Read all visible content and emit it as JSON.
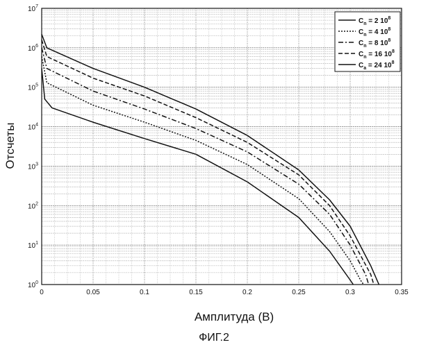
{
  "figure_caption": "ФИГ.2",
  "chart_data": {
    "type": "line",
    "xlabel": "Амплитуда (В)",
    "ylabel": "Отсчеты",
    "xlim": [
      0,
      0.35
    ],
    "ylim": [
      1,
      10000000
    ],
    "y_scale": "log",
    "grid": true,
    "legend_position": "top-right",
    "x_ticks": [
      "0",
      "0.05",
      "0.1",
      "0.15",
      "0.2",
      "0.25",
      "0.3",
      "0.35"
    ],
    "y_ticks": [
      {
        "base": "10",
        "exp": "0"
      },
      {
        "base": "10",
        "exp": "1"
      },
      {
        "base": "10",
        "exp": "2"
      },
      {
        "base": "10",
        "exp": "3"
      },
      {
        "base": "10",
        "exp": "4"
      },
      {
        "base": "10",
        "exp": "5"
      },
      {
        "base": "10",
        "exp": "6"
      },
      {
        "base": "10",
        "exp": "7"
      }
    ],
    "series": [
      {
        "label": "C",
        "sub": "n",
        "value": "= 2 10",
        "sup": "8",
        "dash": "",
        "x": [
          0,
          0.003,
          0.01,
          0.05,
          0.1,
          0.15,
          0.2,
          0.25,
          0.28,
          0.3,
          0.303
        ],
        "y": [
          300000,
          50000,
          30000,
          13000,
          5000,
          2000,
          400,
          50,
          7,
          1.3,
          1
        ]
      },
      {
        "label": "C",
        "sub": "n",
        "value": "= 4 10",
        "sup": "8",
        "dash": "2,2",
        "x": [
          0,
          0.005,
          0.05,
          0.1,
          0.15,
          0.2,
          0.25,
          0.28,
          0.3,
          0.31,
          0.313
        ],
        "y": [
          600000,
          130000,
          35000,
          13000,
          4500,
          1100,
          150,
          22,
          4,
          1.3,
          1
        ]
      },
      {
        "label": "C",
        "sub": "n",
        "value": "= 8 10",
        "sup": "8",
        "dash": "7,3,2,3",
        "x": [
          0,
          0.005,
          0.05,
          0.1,
          0.15,
          0.2,
          0.25,
          0.28,
          0.3,
          0.315,
          0.318
        ],
        "y": [
          1000000,
          300000,
          80000,
          28000,
          9000,
          2300,
          350,
          60,
          10,
          1.8,
          1
        ]
      },
      {
        "label": "C",
        "sub": "n",
        "value": "= 16 10",
        "sup": "8",
        "dash": "6,3",
        "x": [
          0,
          0.005,
          0.05,
          0.1,
          0.15,
          0.2,
          0.25,
          0.28,
          0.3,
          0.32,
          0.323
        ],
        "y": [
          1600000,
          600000,
          170000,
          60000,
          17000,
          4000,
          600,
          100,
          17,
          1.8,
          1
        ]
      },
      {
        "label": "C",
        "sub": "a",
        "value": "= 24 10",
        "sup": "8",
        "dash": "",
        "x": [
          0,
          0.005,
          0.05,
          0.1,
          0.15,
          0.2,
          0.25,
          0.28,
          0.3,
          0.32,
          0.328
        ],
        "y": [
          2200000,
          1000000,
          300000,
          100000,
          28000,
          6000,
          800,
          140,
          30,
          3,
          1
        ]
      }
    ]
  }
}
